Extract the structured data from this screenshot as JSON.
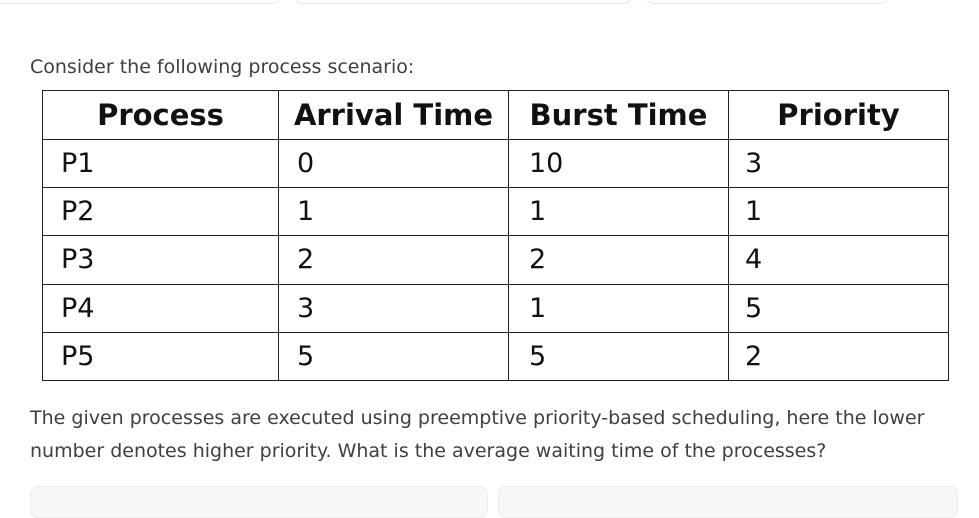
{
  "intro_text": "Consider the following process scenario:",
  "table": {
    "headers": [
      "Process",
      "Arrival Time",
      "Burst Time",
      "Priority"
    ],
    "rows": [
      [
        "P1",
        "0",
        "10",
        "3"
      ],
      [
        "P2",
        "1",
        "1",
        "1"
      ],
      [
        "P3",
        "2",
        "2",
        "4"
      ],
      [
        "P4",
        "3",
        "1",
        "5"
      ],
      [
        "P5",
        "5",
        "5",
        "2"
      ]
    ]
  },
  "question_text": "The given processes are executed using preemptive priority-based scheduling, here the lower number denotes higher priority. What is the average waiting time of the processes?"
}
